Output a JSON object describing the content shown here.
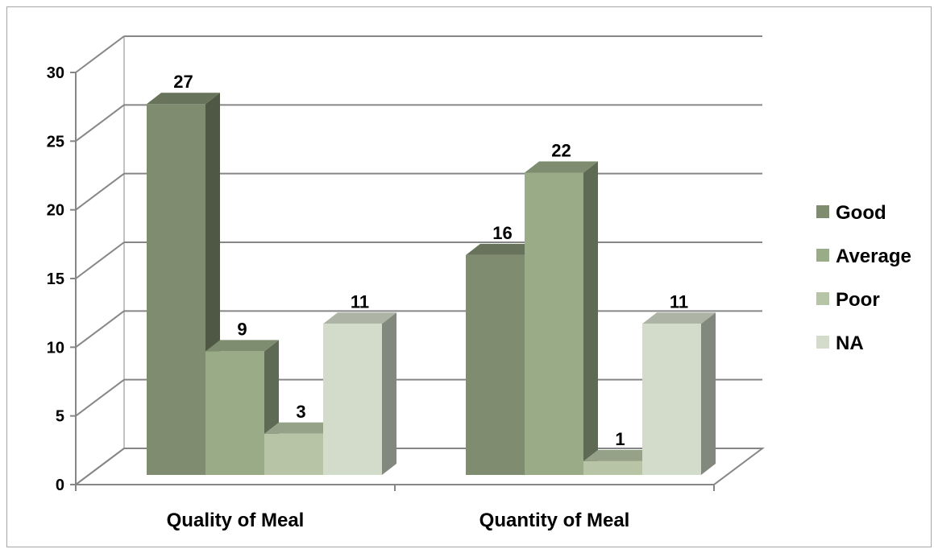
{
  "chart_data": {
    "type": "bar",
    "categories": [
      "Quality of Meal",
      "Quantity of Meal"
    ],
    "series": [
      {
        "name": "Good",
        "values": [
          27,
          16
        ],
        "color": "#7f8c6f"
      },
      {
        "name": "Average",
        "values": [
          9,
          22
        ],
        "color": "#9aab87"
      },
      {
        "name": "Poor",
        "values": [
          3,
          1
        ],
        "color": "#b7c5a6"
      },
      {
        "name": "NA",
        "values": [
          11,
          11
        ],
        "color": "#d3dccb"
      }
    ],
    "y_ticks": [
      "0",
      "5",
      "10",
      "15",
      "20",
      "25",
      "30"
    ],
    "ylim": [
      0,
      30
    ],
    "grid": true,
    "legend_position": "right",
    "style": "3d-clustered-column"
  }
}
